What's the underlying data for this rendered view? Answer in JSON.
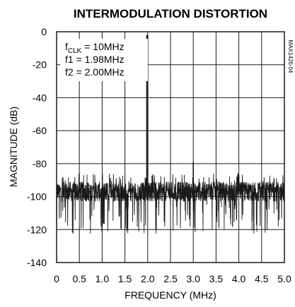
{
  "chart_data": {
    "type": "line",
    "title": "INTERMODULATION DISTORTION",
    "xlabel": "FREQUENCY (MHz)",
    "ylabel": "MAGNITUDE (dB)",
    "xlim": [
      0,
      5
    ],
    "ylim": [
      -140,
      0
    ],
    "x_ticks": [
      "0",
      "0.5",
      "1.0",
      "1.5",
      "2.0",
      "2.5",
      "3.0",
      "3.5",
      "4.0",
      "4.5",
      "5.0"
    ],
    "y_ticks": [
      "0",
      "-20",
      "-40",
      "-60",
      "-80",
      "-100",
      "-120",
      "-140"
    ],
    "grid": true,
    "noise_floor_db": -97,
    "series": [
      {
        "x": [
          1.98,
          2.0,
          2.02,
          2.96,
          3.0,
          3.94,
          3.96,
          3.98,
          4.0,
          4.02
        ],
        "y": [
          -2,
          -2,
          -100,
          -95,
          -79,
          -95,
          -88,
          -86,
          -87,
          -95
        ]
      }
    ],
    "annotations": {
      "fclk": {
        "main": "f",
        "sub": "CLK",
        "rest": " = 10MHz"
      },
      "f1": "f1 = 1.98MHz",
      "f2": "f2 = 2.00MHz"
    },
    "side_note": "MAX1426-04"
  }
}
